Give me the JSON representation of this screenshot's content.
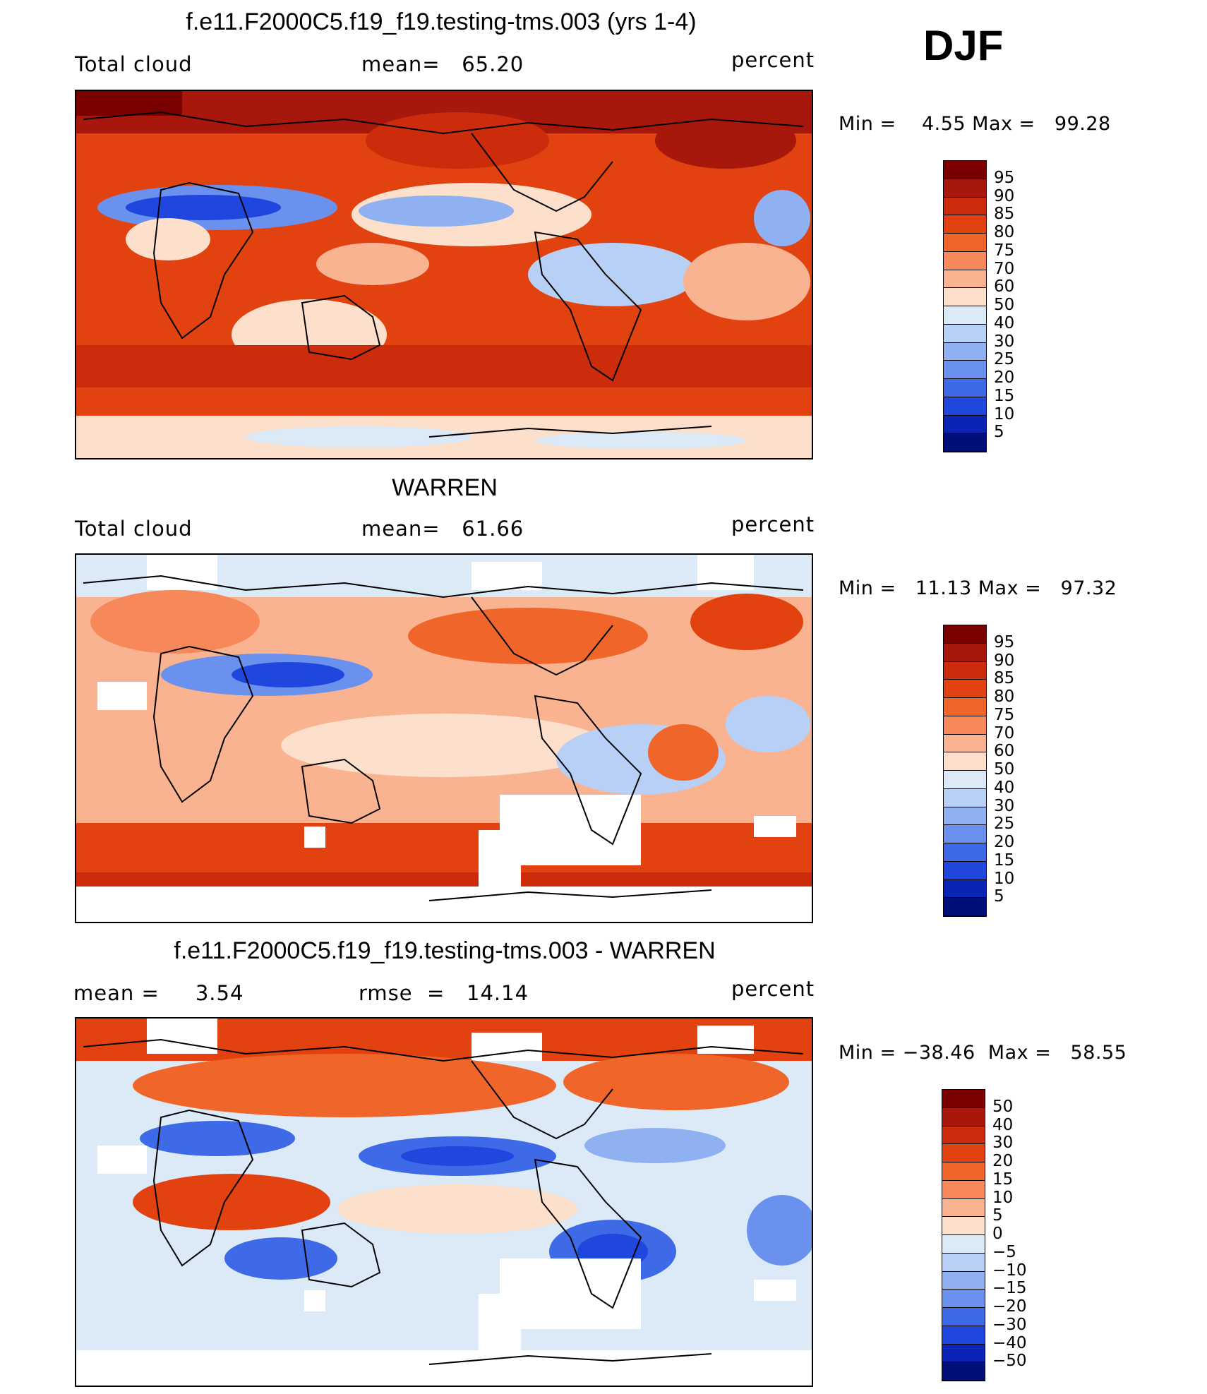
{
  "season": "DJF",
  "panels": [
    {
      "title": "f.e11.F2000C5.f19_f19.testing-tms.003 (yrs 1-4)",
      "left_label": "Total cloud",
      "center_label": "mean=   65.20",
      "right_label": "percent",
      "minmax": "Min =    4.55 Max =   99.28",
      "colorbar_labels": [
        "95",
        "90",
        "85",
        "80",
        "75",
        "70",
        "60",
        "50",
        "40",
        "30",
        "25",
        "20",
        "15",
        "10",
        "5"
      ]
    },
    {
      "title": "WARREN",
      "left_label": "Total cloud",
      "center_label": "mean=   61.66",
      "right_label": "percent",
      "minmax": "Min =   11.13 Max =   97.32",
      "colorbar_labels": [
        "95",
        "90",
        "85",
        "80",
        "75",
        "70",
        "60",
        "50",
        "40",
        "30",
        "25",
        "20",
        "15",
        "10",
        "5"
      ]
    },
    {
      "title": "f.e11.F2000C5.f19_f19.testing-tms.003 - WARREN",
      "left_label": "mean =     3.54",
      "center_label": "rmse  =   14.14",
      "right_label": "percent",
      "minmax": "Min = −38.46  Max =   58.55",
      "colorbar_labels": [
        "50",
        "40",
        "30",
        "20",
        "15",
        "10",
        "5",
        "0",
        "−5",
        "−10",
        "−15",
        "−20",
        "−30",
        "−40",
        "−50"
      ]
    }
  ],
  "colorbar_colors": [
    "#7a0000",
    "#a8170b",
    "#cc2b0c",
    "#e2420f",
    "#f06529",
    "#f7885a",
    "#fab391",
    "#fde0cb",
    "#dce9f7",
    "#b8d0f5",
    "#8fb1f2",
    "#6a91ee",
    "#3e6ae8",
    "#1f46dd",
    "#0a25b5",
    "#00107a"
  ]
}
